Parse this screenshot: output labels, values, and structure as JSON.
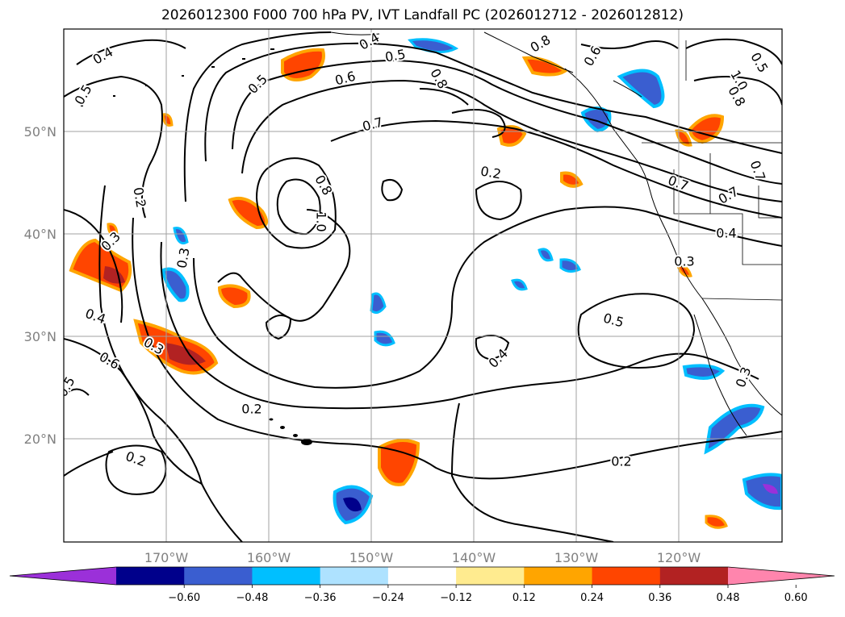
{
  "title": "2026012300 F000 700 hPa PV, IVT Landfall PC (2026012712 - 2026012812)",
  "longitude_labels": [
    "170°W",
    "160°W",
    "150°W",
    "140°W",
    "130°W",
    "120°W"
  ],
  "latitude_labels": [
    "50°N",
    "40°N",
    "30°N",
    "20°N"
  ],
  "colorbar": {
    "colors": [
      "#9b30d9",
      "#00008b",
      "#3a5ed0",
      "#00bfff",
      "#aee2ff",
      "#ffffff",
      "#ffeb8f",
      "#ffa500",
      "#ff4500",
      "#b22222",
      "#ff85ad"
    ],
    "tick_labels": [
      "−0.60",
      "−0.48",
      "−0.36",
      "−0.24",
      "−0.12",
      "0.12",
      "0.24",
      "0.36",
      "0.48",
      "0.60"
    ]
  },
  "contour_labels": [
    "0.4",
    "0.5",
    "0.4",
    "0.5",
    "0.5",
    "0.6",
    "0.8",
    "0.8",
    "0.6",
    "0.7",
    "1.0",
    "0.8",
    "0.7",
    "0.8",
    "1.0",
    "0.2",
    "0.2",
    "0.3",
    "0.3",
    "0.4",
    "0.6",
    "0.3",
    "0.5",
    "0.4",
    "0.5",
    "0.7",
    "0.7",
    "0.4",
    "0.3",
    "0.2",
    "0.2",
    "0.2",
    "0.3",
    "0.5"
  ],
  "chart_data": {
    "type": "map",
    "fields": {
      "contours": "700 hPa PV (black contour lines)",
      "fill": "IVT Landfall PC (shaded, -0.60 to 0.60)"
    },
    "lon_range": [
      "180°W",
      "110°W"
    ],
    "lat_range": [
      "10°N",
      "60°N"
    ],
    "grid": true,
    "colorbar_levels": [
      -0.6,
      -0.48,
      -0.36,
      -0.24,
      -0.12,
      0.12,
      0.24,
      0.36,
      0.48,
      0.6
    ],
    "colorbar_extend": "both"
  }
}
